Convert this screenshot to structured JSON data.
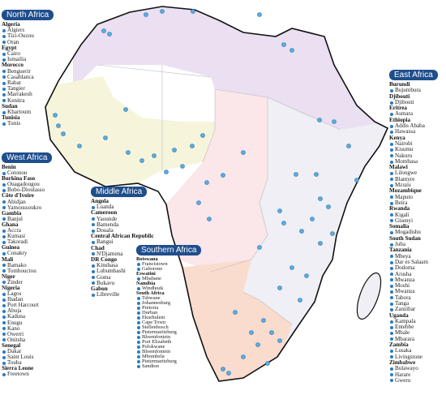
{
  "regions": [
    {
      "title": "North Africa",
      "countries": [
        {
          "name": "Algeria",
          "cities": [
            "Algiers",
            "Tizi-Ouzou",
            "Oran"
          ]
        },
        {
          "name": "Egypt",
          "cities": [
            "Cairo",
            "Ismailia"
          ]
        },
        {
          "name": "Morocco",
          "cities": [
            "Benguerir",
            "Casablanca",
            "Rabat",
            "Tangier",
            "Marrakesh",
            "Kenitra"
          ]
        },
        {
          "name": "Sudan",
          "cities": [
            "Khartoum"
          ]
        },
        {
          "name": "Tunisia",
          "cities": [
            "Tunis"
          ]
        }
      ]
    },
    {
      "title": "West Africa",
      "countries": [
        {
          "name": "Benin",
          "cities": [
            "Cotonou"
          ]
        },
        {
          "name": "Burkina Faso",
          "cities": [
            "Ouagadougou",
            "Bobo-Dioulasso"
          ]
        },
        {
          "name": "Côte d'Ivoire",
          "cities": [
            "Abidjan",
            "Yamoussoukro"
          ]
        },
        {
          "name": "Gambia",
          "cities": [
            "Banjul"
          ]
        },
        {
          "name": "Ghana",
          "cities": [
            "Accra",
            "Kumasi",
            "Takoradi"
          ]
        },
        {
          "name": "Guinea",
          "cities": [
            "Conakry"
          ]
        },
        {
          "name": "Mali",
          "cities": [
            "Bamako",
            "Tombouctou"
          ]
        },
        {
          "name": "Niger",
          "cities": [
            "Zinder"
          ]
        },
        {
          "name": "Nigeria",
          "cities": [
            "Lagos",
            "Ibadan",
            "Port Harcourt",
            "Abuja",
            "Kaduna",
            "Enugu",
            "Kano",
            "Owerri",
            "Onitsha"
          ]
        },
        {
          "name": "Senegal",
          "cities": [
            "Dakar",
            "Saint Louis",
            "Touba"
          ]
        },
        {
          "name": "Sierra Leone",
          "cities": [
            "Freetown"
          ]
        }
      ]
    },
    {
      "title": "Middle Africa",
      "countries": [
        {
          "name": "Angola",
          "cities": [
            "Luanda"
          ]
        },
        {
          "name": "Cameroon",
          "cities": [
            "Yaounde",
            "Bamenda",
            "Douala"
          ]
        },
        {
          "name": "Central African Republic",
          "cities": [
            "Bangui"
          ]
        },
        {
          "name": "Chad",
          "cities": [
            "N'Djamena"
          ]
        },
        {
          "name": "DR Congo",
          "cities": [
            "Kinshasa",
            "Lubumbashi",
            "Goma",
            "Bukavu"
          ]
        },
        {
          "name": "Gabon",
          "cities": [
            "Libreville"
          ]
        }
      ]
    },
    {
      "title": "Southern Africa",
      "countries": [
        {
          "name": "Botswana",
          "cities": [
            "Francistown",
            "Gaborone"
          ]
        },
        {
          "name": "Eswatini",
          "cities": [
            "Mbabane"
          ]
        },
        {
          "name": "Namibia",
          "cities": [
            "Windhoek"
          ]
        },
        {
          "name": "South Africa",
          "cities": [
            "Tshwane",
            "Johannesburg",
            "Pretoria",
            "Durban",
            "Ekurhuleni",
            "Cape Town",
            "Stellenbosch",
            "Pietermaritzburg",
            "Bloemfontein",
            "Port Elizabeth",
            "Polokwane",
            "Bloemfontein",
            "Mbombela",
            "Pietermaritzburg",
            "Sandton"
          ]
        }
      ]
    },
    {
      "title": "East Africa",
      "countries": [
        {
          "name": "Burundi",
          "cities": [
            "Bujumbura"
          ]
        },
        {
          "name": "Djibouti",
          "cities": [
            "Djibouti"
          ]
        },
        {
          "name": "Eritrea",
          "cities": [
            "Asmara"
          ]
        },
        {
          "name": "Ethiopia",
          "cities": [
            "Addis Ababa",
            "Hawassa"
          ]
        },
        {
          "name": "Kenya",
          "cities": [
            "Nairobi",
            "Kisumu",
            "Nakuru",
            "Mombasa"
          ]
        },
        {
          "name": "Malawi",
          "cities": [
            "Lilongwe",
            "Blantyre",
            "Mzuzu"
          ]
        },
        {
          "name": "Mozambique",
          "cities": [
            "Maputo",
            "Beira"
          ]
        },
        {
          "name": "Rwanda",
          "cities": [
            "Kigali",
            "Gisenyi"
          ]
        },
        {
          "name": "Somalia",
          "cities": [
            "Mogadishu"
          ]
        },
        {
          "name": "South Sudan",
          "cities": [
            "Juba"
          ]
        },
        {
          "name": "Tanzania",
          "cities": [
            "Mbeya",
            "Dar es Salaam",
            "Dodoma",
            "Arusha",
            "Mwanza",
            "Moshi",
            "Mwanza",
            "Tabora",
            "Tanga",
            "Zanzibar"
          ]
        },
        {
          "name": "Uganda",
          "cities": [
            "Kampala",
            "Entebbe",
            "Mbale",
            "Mbarara"
          ]
        },
        {
          "name": "Zambia",
          "cities": [
            "Lusaka",
            "Livingstone"
          ]
        },
        {
          "name": "Zimbabwe",
          "cities": [
            "Bulawayo",
            "Harare",
            "Gweru"
          ]
        }
      ]
    }
  ]
}
